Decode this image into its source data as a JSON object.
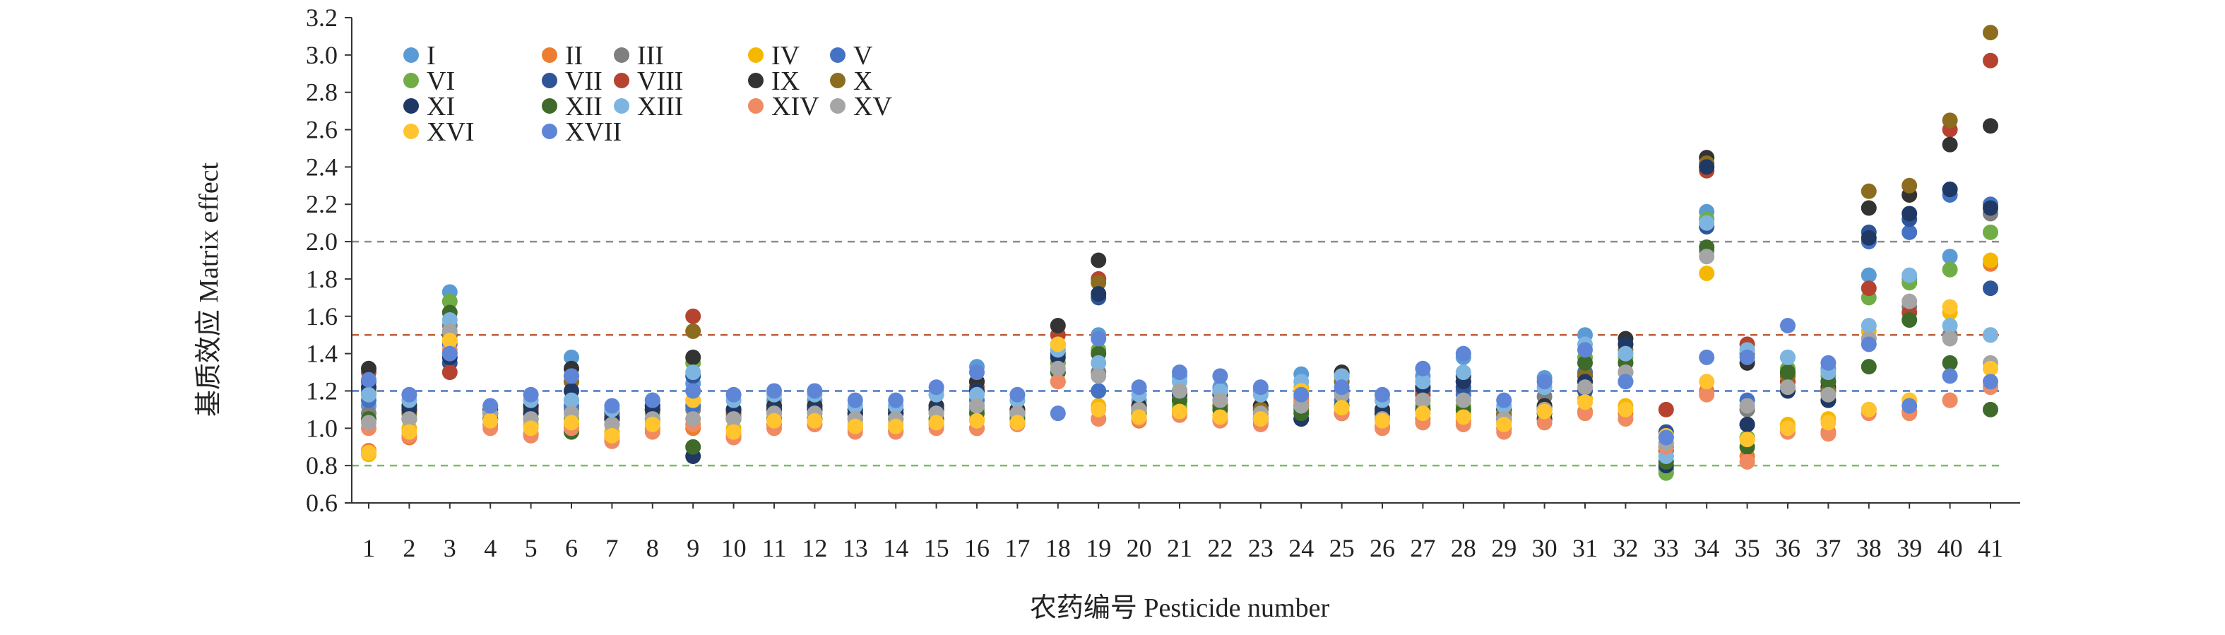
{
  "chart_data": {
    "type": "scatter",
    "title": "",
    "xlabel": "农药编号 Pesticide number",
    "ylabel": "基质效应 Matrix effect",
    "ylim": [
      0.6,
      3.2
    ],
    "yticks": [
      "0.6",
      "0.8",
      "1.0",
      "1.2",
      "1.4",
      "1.6",
      "1.8",
      "2.0",
      "2.2",
      "2.4",
      "2.6",
      "2.8",
      "3.0",
      "3.2"
    ],
    "categories": [
      "1",
      "2",
      "3",
      "4",
      "5",
      "6",
      "7",
      "8",
      "9",
      "10",
      "11",
      "12",
      "13",
      "14",
      "15",
      "16",
      "17",
      "18",
      "19",
      "20",
      "21",
      "22",
      "23",
      "24",
      "25",
      "26",
      "27",
      "28",
      "29",
      "30",
      "31",
      "32",
      "33",
      "34",
      "35",
      "36",
      "37",
      "38",
      "39",
      "40",
      "41"
    ],
    "grid": false,
    "legend_position": "top-left",
    "reference_lines": [
      {
        "value": 2.0,
        "color": "#8c8c8c"
      },
      {
        "value": 1.5,
        "color": "#c0603a"
      },
      {
        "value": 1.2,
        "color": "#4a78c2"
      },
      {
        "value": 0.8,
        "color": "#79c05a"
      }
    ],
    "series": [
      {
        "name": "I",
        "color": "#5b9bd5",
        "values": [
          1.12,
          1.05,
          1.73,
          1.1,
          1.12,
          1.38,
          1.08,
          1.15,
          1.24,
          1.1,
          1.15,
          1.15,
          1.1,
          1.12,
          1.18,
          1.33,
          1.15,
          1.42,
          1.5,
          1.15,
          1.28,
          1.22,
          1.2,
          1.29,
          1.28,
          1.15,
          1.28,
          1.38,
          1.1,
          1.27,
          1.5,
          1.4,
          0.92,
          2.16,
          1.1,
          1.38,
          1.32,
          1.82,
          1.8,
          1.92,
          1.5
        ]
      },
      {
        "name": "II",
        "color": "#ed7d31",
        "values": [
          0.88,
          0.95,
          1.4,
          1.02,
          0.97,
          1.02,
          0.95,
          1.0,
          1.0,
          0.96,
          1.02,
          1.02,
          1.0,
          0.99,
          1.02,
          1.0,
          1.03,
          1.25,
          1.05,
          1.04,
          1.08,
          1.05,
          1.03,
          1.14,
          1.08,
          1.01,
          1.05,
          1.04,
          1.0,
          1.05,
          1.09,
          1.08,
          0.85,
          1.2,
          0.85,
          1.0,
          0.98,
          1.1,
          1.09,
          1.15,
          1.88
        ]
      },
      {
        "name": "III",
        "color": "#7f7f7f",
        "values": [
          1.08,
          1.1,
          1.55,
          1.08,
          1.08,
          1.1,
          1.05,
          1.1,
          1.1,
          1.06,
          1.12,
          1.12,
          1.07,
          1.08,
          1.12,
          1.12,
          1.1,
          1.35,
          1.3,
          1.12,
          1.2,
          1.15,
          1.12,
          1.16,
          1.25,
          1.08,
          1.18,
          1.2,
          1.07,
          1.17,
          1.3,
          1.35,
          0.9,
          1.95,
          1.1,
          1.22,
          1.2,
          1.48,
          1.65,
          1.5,
          2.15
        ]
      },
      {
        "name": "IV",
        "color": "#f5b800",
        "values": [
          0.86,
          1.0,
          1.47,
          1.05,
          1.02,
          1.05,
          0.98,
          1.03,
          1.15,
          1.0,
          1.05,
          1.05,
          1.02,
          1.02,
          1.04,
          1.05,
          1.04,
          1.45,
          1.12,
          1.07,
          1.1,
          1.07,
          1.06,
          1.22,
          1.12,
          1.05,
          1.1,
          1.08,
          1.03,
          1.1,
          1.16,
          1.12,
          0.95,
          1.83,
          0.95,
          1.02,
          1.05,
          1.52,
          1.15,
          1.62,
          1.9
        ]
      },
      {
        "name": "V",
        "color": "#4472c4",
        "values": [
          1.15,
          1.08,
          1.45,
          1.08,
          1.1,
          1.12,
          1.06,
          1.1,
          1.12,
          1.08,
          1.1,
          1.1,
          1.08,
          1.08,
          1.1,
          1.15,
          1.08,
          1.3,
          1.2,
          1.1,
          1.15,
          1.12,
          1.1,
          1.12,
          1.15,
          1.08,
          1.15,
          1.18,
          1.07,
          1.1,
          1.3,
          1.25,
          0.78,
          2.4,
          1.15,
          1.25,
          1.25,
          2.0,
          2.05,
          2.25,
          2.2
        ]
      },
      {
        "name": "VI",
        "color": "#70ad47",
        "values": [
          1.18,
          1.05,
          1.68,
          1.05,
          1.05,
          1.05,
          1.02,
          1.08,
          1.35,
          1.05,
          1.08,
          1.08,
          1.05,
          1.05,
          1.08,
          1.1,
          1.06,
          1.35,
          1.42,
          1.08,
          1.12,
          1.1,
          1.08,
          1.1,
          1.25,
          1.05,
          1.12,
          1.12,
          1.05,
          1.08,
          1.38,
          1.38,
          0.76,
          2.12,
          0.95,
          1.32,
          1.28,
          1.7,
          1.78,
          1.85,
          2.05
        ]
      },
      {
        "name": "VII",
        "color": "#2e5597",
        "values": [
          1.25,
          1.12,
          1.35,
          1.1,
          1.12,
          1.15,
          1.08,
          1.12,
          1.28,
          1.1,
          1.12,
          1.12,
          1.1,
          1.1,
          1.12,
          1.25,
          1.1,
          1.4,
          1.7,
          1.12,
          1.18,
          1.15,
          1.12,
          1.05,
          1.2,
          1.1,
          1.2,
          1.22,
          1.1,
          1.12,
          1.2,
          1.3,
          0.98,
          2.08,
          1.02,
          1.28,
          1.15,
          2.05,
          2.12,
          2.28,
          1.75
        ]
      },
      {
        "name": "VIII",
        "color": "#b5432f",
        "values": [
          1.3,
          1.1,
          1.3,
          1.08,
          1.1,
          1.28,
          1.06,
          1.1,
          1.6,
          1.08,
          1.1,
          1.1,
          1.08,
          1.08,
          1.1,
          1.22,
          1.08,
          1.5,
          1.8,
          1.1,
          1.15,
          1.12,
          1.1,
          1.12,
          1.28,
          1.08,
          1.18,
          1.25,
          1.08,
          1.1,
          1.25,
          1.45,
          1.1,
          2.38,
          1.45,
          1.25,
          1.2,
          1.75,
          1.62,
          2.6,
          2.97
        ]
      },
      {
        "name": "IX",
        "color": "#333333",
        "values": [
          1.32,
          1.12,
          1.5,
          1.1,
          1.12,
          1.32,
          1.1,
          1.12,
          1.38,
          1.1,
          1.12,
          1.12,
          1.1,
          1.1,
          1.12,
          1.25,
          1.1,
          1.55,
          1.9,
          1.12,
          1.2,
          1.18,
          1.12,
          1.12,
          1.3,
          1.1,
          1.22,
          1.28,
          1.1,
          1.12,
          1.28,
          1.48,
          0.9,
          2.45,
          1.35,
          1.3,
          1.22,
          2.18,
          2.25,
          2.52,
          2.62
        ]
      },
      {
        "name": "X",
        "color": "#8c6d1f",
        "values": [
          1.2,
          1.08,
          1.5,
          1.08,
          1.08,
          1.25,
          1.05,
          1.1,
          1.52,
          1.08,
          1.1,
          1.1,
          1.08,
          1.08,
          1.1,
          1.2,
          1.08,
          1.45,
          1.78,
          1.1,
          1.15,
          1.12,
          1.1,
          1.1,
          1.25,
          1.08,
          1.15,
          1.25,
          1.08,
          1.1,
          1.28,
          1.42,
          0.88,
          2.42,
          1.4,
          1.28,
          1.2,
          2.27,
          2.3,
          2.65,
          3.12
        ]
      },
      {
        "name": "XI",
        "color": "#203864",
        "values": [
          1.22,
          1.1,
          1.38,
          1.05,
          1.08,
          1.2,
          1.05,
          1.1,
          0.85,
          1.1,
          1.1,
          1.1,
          1.08,
          1.08,
          1.1,
          1.2,
          1.08,
          1.38,
          1.72,
          1.1,
          1.18,
          1.2,
          1.05,
          1.05,
          1.08,
          1.08,
          1.22,
          1.25,
          1.05,
          1.05,
          1.25,
          1.45,
          0.8,
          2.4,
          1.02,
          1.2,
          1.15,
          2.02,
          2.15,
          2.28,
          2.18
        ]
      },
      {
        "name": "XII",
        "color": "#3e6b2a",
        "values": [
          1.05,
          1.05,
          1.62,
          1.08,
          1.05,
          0.98,
          1.02,
          1.05,
          0.9,
          1.05,
          1.05,
          1.05,
          1.05,
          1.05,
          1.05,
          1.08,
          1.05,
          1.3,
          1.4,
          1.08,
          1.15,
          1.1,
          1.05,
          1.08,
          1.12,
          1.05,
          1.1,
          1.1,
          1.05,
          1.08,
          1.35,
          1.35,
          0.82,
          1.97,
          0.9,
          1.3,
          1.25,
          1.33,
          1.58,
          1.35,
          1.1
        ]
      },
      {
        "name": "XIII",
        "color": "#7eb5e0",
        "values": [
          1.18,
          1.15,
          1.58,
          1.12,
          1.15,
          1.15,
          1.1,
          1.15,
          1.3,
          1.15,
          1.18,
          1.18,
          1.12,
          1.12,
          1.18,
          1.18,
          1.15,
          1.42,
          1.35,
          1.18,
          1.25,
          1.2,
          1.18,
          1.25,
          1.28,
          1.15,
          1.25,
          1.3,
          1.12,
          1.22,
          1.45,
          1.4,
          0.85,
          2.1,
          1.42,
          1.38,
          1.3,
          1.55,
          1.82,
          1.55,
          1.5
        ]
      },
      {
        "name": "XIV",
        "color": "#f08a62",
        "values": [
          1.0,
          0.96,
          1.42,
          1.0,
          0.96,
          1.0,
          0.93,
          0.98,
          1.02,
          0.95,
          1.0,
          1.02,
          0.98,
          0.98,
          1.0,
          1.0,
          1.02,
          1.25,
          1.05,
          1.05,
          1.07,
          1.04,
          1.02,
          1.15,
          1.08,
          1.0,
          1.03,
          1.02,
          0.98,
          1.03,
          1.08,
          1.05,
          0.9,
          1.18,
          0.82,
          0.98,
          0.97,
          1.08,
          1.08,
          1.15,
          1.22
        ]
      },
      {
        "name": "XV",
        "color": "#a5a5a5",
        "values": [
          1.03,
          1.05,
          1.52,
          1.08,
          1.05,
          1.08,
          1.02,
          1.05,
          1.05,
          1.05,
          1.08,
          1.08,
          1.05,
          1.05,
          1.08,
          1.12,
          1.08,
          1.32,
          1.28,
          1.1,
          1.2,
          1.15,
          1.08,
          1.12,
          1.18,
          1.05,
          1.15,
          1.15,
          1.05,
          1.1,
          1.22,
          1.3,
          0.92,
          1.92,
          1.12,
          1.22,
          1.18,
          1.48,
          1.68,
          1.48,
          1.35
        ]
      },
      {
        "name": "XVI",
        "color": "#ffc42e",
        "values": [
          0.87,
          0.98,
          1.47,
          1.04,
          1.0,
          1.03,
          0.96,
          1.02,
          1.15,
          0.98,
          1.04,
          1.04,
          1.01,
          1.01,
          1.03,
          1.04,
          1.03,
          1.45,
          1.1,
          1.06,
          1.09,
          1.06,
          1.05,
          1.2,
          1.11,
          1.04,
          1.08,
          1.06,
          1.02,
          1.09,
          1.14,
          1.1,
          0.96,
          1.25,
          0.94,
          1.0,
          1.03,
          1.1,
          1.15,
          1.65,
          1.32
        ]
      },
      {
        "name": "XVII",
        "color": "#5f85d6",
        "values": [
          1.26,
          1.18,
          1.4,
          1.12,
          1.18,
          1.28,
          1.12,
          1.15,
          1.2,
          1.18,
          1.2,
          1.2,
          1.15,
          1.15,
          1.22,
          1.3,
          1.18,
          1.08,
          1.48,
          1.22,
          1.3,
          1.28,
          1.22,
          1.18,
          1.22,
          1.18,
          1.32,
          1.4,
          1.15,
          1.25,
          1.42,
          1.25,
          0.95,
          1.38,
          1.38,
          1.55,
          1.35,
          1.45,
          1.12,
          1.28,
          1.25
        ]
      }
    ]
  }
}
